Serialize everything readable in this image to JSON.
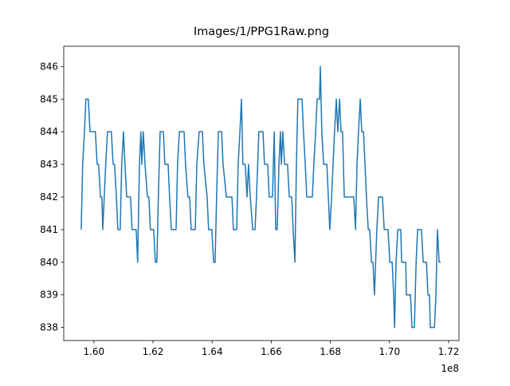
{
  "chart_data": {
    "type": "line",
    "title": "Images/1/PPG1Raw.png",
    "x_offset_label": "1e8",
    "x": [
      1.5957,
      1.5962,
      1.5968,
      1.5973,
      1.5981,
      1.5987,
      1.6005,
      1.6011,
      1.6016,
      1.6022,
      1.6027,
      1.603,
      1.6035,
      1.604,
      1.6046,
      1.6059,
      1.6065,
      1.607,
      1.6076,
      1.6081,
      1.6089,
      1.6094,
      1.61,
      1.6105,
      1.6111,
      1.6124,
      1.6129,
      1.6143,
      1.6148,
      1.6154,
      1.6159,
      1.6162,
      1.6167,
      1.6173,
      1.6181,
      1.6186,
      1.6191,
      1.6202,
      1.6208,
      1.6213,
      1.6218,
      1.6224,
      1.6235,
      1.624,
      1.6251,
      1.6256,
      1.6262,
      1.6278,
      1.6283,
      1.6289,
      1.6305,
      1.631,
      1.6318,
      1.6324,
      1.6329,
      1.6343,
      1.6348,
      1.6356,
      1.6367,
      1.6372,
      1.6383,
      1.6388,
      1.6399,
      1.6405,
      1.641,
      1.6415,
      1.6421,
      1.6432,
      1.6437,
      1.6448,
      1.6467,
      1.6472,
      1.6483,
      1.6488,
      1.6494,
      1.6499,
      1.6504,
      1.6512,
      1.6518,
      1.6523,
      1.6529,
      1.6537,
      1.6545,
      1.655,
      1.6558,
      1.6572,
      1.6577,
      1.6588,
      1.6593,
      1.6604,
      1.661,
      1.6615,
      1.662,
      1.6626,
      1.6631,
      1.6634,
      1.6639,
      1.6645,
      1.6655,
      1.6661,
      1.6669,
      1.6674,
      1.668,
      1.6685,
      1.669,
      1.6704,
      1.6709,
      1.6715,
      1.672,
      1.6728,
      1.6739,
      1.6744,
      1.675,
      1.6755,
      1.6763,
      1.6766,
      1.6771,
      1.6777,
      1.6788,
      1.6793,
      1.6798,
      1.6804,
      1.6809,
      1.6814,
      1.682,
      1.6825,
      1.6831,
      1.6836,
      1.6841,
      1.6847,
      1.6879,
      1.6885,
      1.689,
      1.6895,
      1.6901,
      1.6906,
      1.6912,
      1.6917,
      1.6922,
      1.6928,
      1.6933,
      1.6939,
      1.6944,
      1.6949,
      1.6957,
      1.6963,
      1.6976,
      1.6982,
      1.6995,
      1.7001,
      1.7009,
      1.7014,
      1.7017,
      1.7022,
      1.7028,
      1.7038,
      1.7041,
      1.7049,
      1.7055,
      1.7057,
      1.7063,
      1.7071,
      1.7076,
      1.7084,
      1.709,
      1.7095,
      1.7108,
      1.7114,
      1.7125,
      1.713,
      1.7135,
      1.7138,
      1.7152,
      1.7157,
      1.7162,
      1.7168,
      1.7173
    ],
    "series": [
      {
        "color": "#1f77b4",
        "values": [
          841,
          843,
          844,
          845,
          845,
          844,
          844,
          843,
          843,
          842,
          842,
          841,
          842,
          843,
          844,
          844,
          843,
          843,
          842,
          841,
          841,
          843,
          844,
          843,
          842,
          842,
          841,
          841,
          840,
          843,
          844,
          843,
          844,
          843,
          842,
          842,
          841,
          841,
          840,
          840,
          842,
          844,
          844,
          843,
          843,
          842,
          841,
          841,
          843,
          844,
          844,
          843,
          842,
          842,
          841,
          841,
          843,
          844,
          844,
          843,
          842,
          841,
          841,
          840,
          840,
          842,
          844,
          844,
          843,
          842,
          842,
          841,
          841,
          843,
          844,
          845,
          843,
          843,
          842,
          843,
          842,
          841,
          841,
          842,
          844,
          844,
          843,
          843,
          842,
          842,
          844,
          841,
          841,
          843,
          844,
          843,
          844,
          843,
          843,
          842,
          842,
          841,
          840,
          843,
          845,
          845,
          844,
          843,
          842,
          842,
          842,
          843,
          844,
          845,
          845,
          846,
          844,
          843,
          843,
          842,
          841,
          842,
          843,
          844,
          845,
          844,
          845,
          844,
          844,
          842,
          842,
          841,
          843,
          844,
          845,
          844,
          844,
          843,
          842,
          841,
          841,
          840,
          840,
          839,
          841,
          842,
          842,
          841,
          841,
          840,
          840,
          839,
          838,
          840,
          841,
          841,
          840,
          840,
          840,
          839,
          839,
          839,
          838,
          838,
          840,
          841,
          841,
          840,
          840,
          839,
          839,
          838,
          838,
          839,
          841,
          840,
          840
        ]
      }
    ],
    "xlim": [
      1.5898,
      1.7235
    ],
    "xticks": [
      {
        "value": 1.6,
        "label": "1.60"
      },
      {
        "value": 1.62,
        "label": "1.62"
      },
      {
        "value": 1.64,
        "label": "1.64"
      },
      {
        "value": 1.66,
        "label": "1.66"
      },
      {
        "value": 1.68,
        "label": "1.68"
      },
      {
        "value": 1.7,
        "label": "1.70"
      },
      {
        "value": 1.72,
        "label": "1.72"
      }
    ],
    "ylim": [
      837.6,
      846.62
    ],
    "yticks": [
      838,
      839,
      840,
      841,
      842,
      843,
      844,
      845,
      846
    ],
    "grid": false
  }
}
